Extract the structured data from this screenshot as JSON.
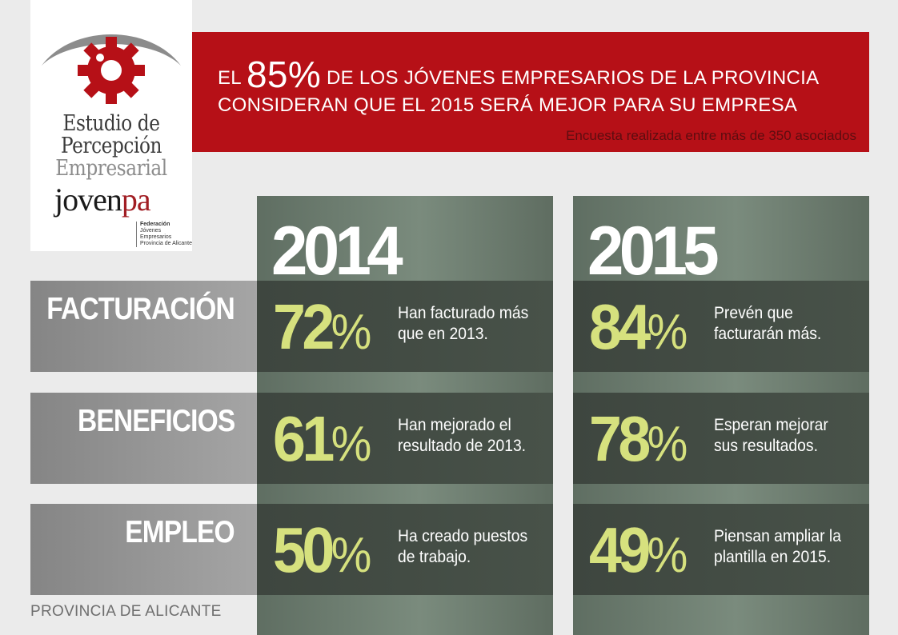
{
  "logo": {
    "line1": "Estudio de",
    "line2": "Percepción",
    "line3": "Empresarial",
    "brand_part1": "joven",
    "brand_part2": "pa",
    "fed_line1": "Federación",
    "fed_line2": "Jóvenes Empresarios",
    "fed_line3": "Provincia de Alicante",
    "icon": "gear-eye-icon"
  },
  "banner": {
    "headline_pre": "EL ",
    "headline_big": "85%",
    "headline_post": " DE LOS JÓVENES EMPRESARIOS DE LA PROVINCIA CONSIDERAN QUE EL 2015 SERÁ MEJOR PARA SU EMPRESA",
    "subline": "Encuesta realizada entre más de 350 asociados"
  },
  "years": [
    "2014",
    "2015"
  ],
  "rows": [
    {
      "label": "FACTURACIÓN",
      "cells": [
        {
          "value": "72",
          "sign": "%",
          "desc": "Han facturado más que en 2013."
        },
        {
          "value": "84",
          "sign": "%",
          "desc": "Prevén que facturarán más."
        }
      ]
    },
    {
      "label": "BENEFICIOS",
      "cells": [
        {
          "value": "61",
          "sign": "%",
          "desc": "Han mejorado el resultado de 2013."
        },
        {
          "value": "78",
          "sign": "%",
          "desc": "Esperan mejorar sus resultados."
        }
      ]
    },
    {
      "label": "EMPLEO",
      "cells": [
        {
          "value": "50",
          "sign": "%",
          "desc": "Ha creado puestos de trabajo."
        },
        {
          "value": "49",
          "sign": "%",
          "desc": "Piensan ampliar la plantilla en 2015."
        }
      ]
    }
  ],
  "footer": "PROVINCIA DE ALICANTE",
  "colors": {
    "banner_red": "#b61017",
    "percent_green": "#d6e17e",
    "panel_green": "#6f7f72",
    "cell_dark": "#434b44"
  }
}
